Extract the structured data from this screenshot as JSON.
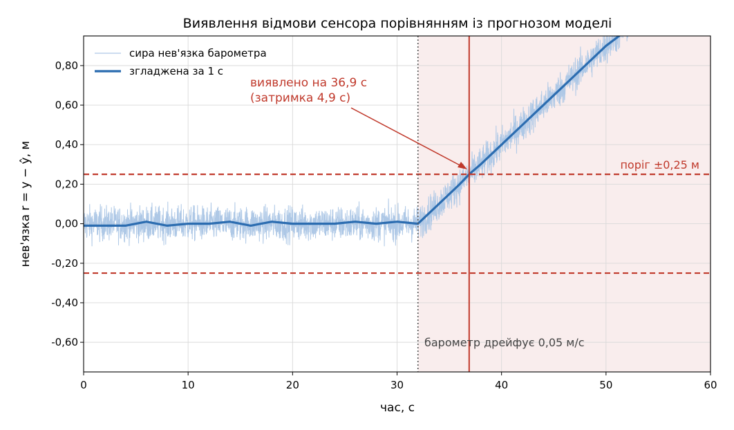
{
  "chart_data": {
    "type": "line",
    "title": "Виявлення відмови сенсора порівнянням із прогнозом моделі",
    "xlabel": "час, с",
    "ylabel": "нев'язка r = y − ŷ, м",
    "xlim": [
      0,
      60
    ],
    "ylim": [
      -0.75,
      0.95
    ],
    "x_ticks": [
      0,
      10,
      20,
      30,
      40,
      50,
      60
    ],
    "x_tick_labels": [
      "0",
      "10",
      "20",
      "30",
      "40",
      "50",
      "60"
    ],
    "y_ticks": [
      -0.6,
      -0.4,
      -0.2,
      0.0,
      0.2,
      0.4,
      0.6,
      0.8
    ],
    "y_tick_labels": [
      "-0,60",
      "-0,40",
      "-0,20",
      "0,00",
      "0,20",
      "0,40",
      "0,60",
      "0,80"
    ],
    "grid": true,
    "legend_placement": "top-left",
    "series": [
      {
        "name": "сира нев'язка барометра",
        "color": "#aec8e6",
        "style": "thin noisy line",
        "sample_rate_hz": 50,
        "noise_amplitude_approx": 0.08,
        "model": "0 before 32 s, then 0.05 × (t − 32)"
      },
      {
        "name": "згладжена за 1 с",
        "color": "#2b6cb0",
        "style": "thick line",
        "x": [
          0,
          2,
          4,
          6,
          8,
          10,
          12,
          14,
          16,
          18,
          20,
          22,
          24,
          26,
          28,
          30,
          32,
          34,
          36,
          36.9,
          38,
          40,
          42,
          44,
          46,
          48,
          50,
          52
        ],
        "y": [
          -0.01,
          -0.01,
          -0.01,
          0.01,
          -0.01,
          0.0,
          0.0,
          0.01,
          -0.01,
          0.01,
          0.0,
          0.0,
          0.0,
          0.01,
          0.0,
          0.01,
          0.0,
          0.1,
          0.2,
          0.25,
          0.3,
          0.4,
          0.5,
          0.6,
          0.7,
          0.8,
          0.9,
          0.98
        ]
      }
    ],
    "thresholds": {
      "upper": 0.25,
      "lower": -0.25,
      "color": "#c0392b",
      "label": "поріг ±0,25 м"
    },
    "fault": {
      "start": 32.0,
      "label": "барометр дрейфує 0,05 м/с",
      "shade_color": "#f9eded",
      "marker_color": "#555555"
    },
    "detection": {
      "time": 36.9,
      "value": 0.25,
      "color": "#c0392b",
      "label_lines": [
        "виявлено на 36,9 с",
        "(затримка 4,9 с)"
      ]
    }
  }
}
